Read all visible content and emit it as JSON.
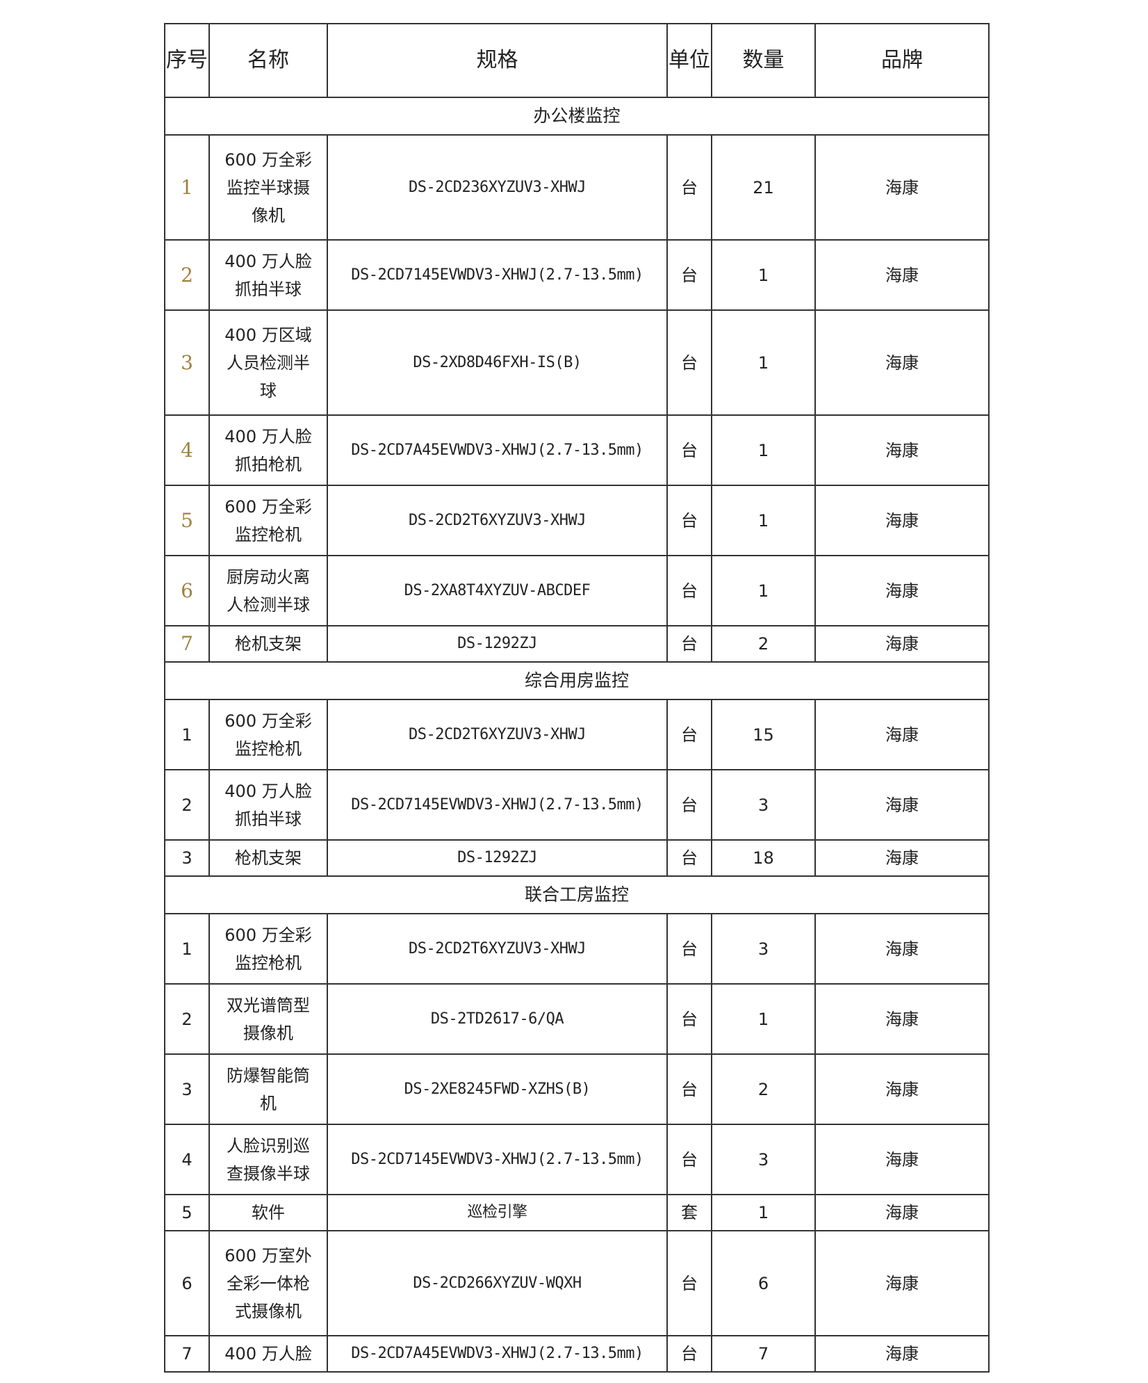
{
  "headers": {
    "seq": "序号",
    "name": "名称",
    "spec": "规格",
    "unit": "单位",
    "qty": "数量",
    "brand": "品牌"
  },
  "sections": [
    {
      "title": "办公楼监控",
      "seq_color": "#a0803e",
      "rows": [
        {
          "seq": "1",
          "name": "600 万全彩监控半球摄像机",
          "spec": "DS-2CD236XYZUV3-XHWJ",
          "unit": "台",
          "qty": "21",
          "brand": "海康"
        },
        {
          "seq": "2",
          "name": "400 万人脸抓拍半球",
          "spec": "DS-2CD7145EVWDV3-XHWJ(2.7-13.5mm)",
          "unit": "台",
          "qty": "1",
          "brand": "海康"
        },
        {
          "seq": "3",
          "name": "400 万区域人员检测半球",
          "spec": "DS-2XD8D46FXH-IS(B)",
          "unit": "台",
          "qty": "1",
          "brand": "海康"
        },
        {
          "seq": "4",
          "name": "400 万人脸抓拍枪机",
          "spec": "DS-2CD7A45EVWDV3-XHWJ(2.7-13.5mm)",
          "unit": "台",
          "qty": "1",
          "brand": "海康"
        },
        {
          "seq": "5",
          "name": "600 万全彩监控枪机",
          "spec": "DS-2CD2T6XYZUV3-XHWJ",
          "unit": "台",
          "qty": "1",
          "brand": "海康"
        },
        {
          "seq": "6",
          "name": "厨房动火离人检测半球",
          "spec": "DS-2XA8T4XYZUV-ABCDEF",
          "unit": "台",
          "qty": "1",
          "brand": "海康"
        },
        {
          "seq": "7",
          "name": "枪机支架",
          "spec": "DS-1292ZJ",
          "unit": "台",
          "qty": "2",
          "brand": "海康"
        }
      ]
    },
    {
      "title": "综合用房监控",
      "rows": [
        {
          "seq": "1",
          "name": "600 万全彩监控枪机",
          "spec": "DS-2CD2T6XYZUV3-XHWJ",
          "unit": "台",
          "qty": "15",
          "brand": "海康"
        },
        {
          "seq": "2",
          "name": "400 万人脸抓拍半球",
          "spec": "DS-2CD7145EVWDV3-XHWJ(2.7-13.5mm)",
          "unit": "台",
          "qty": "3",
          "brand": "海康"
        },
        {
          "seq": "3",
          "name": "枪机支架",
          "spec": "DS-1292ZJ",
          "unit": "台",
          "qty": "18",
          "brand": "海康"
        }
      ]
    },
    {
      "title": "联合工房监控",
      "rows": [
        {
          "seq": "1",
          "name": "600 万全彩监控枪机",
          "spec": "DS-2CD2T6XYZUV3-XHWJ",
          "unit": "台",
          "qty": "3",
          "brand": "海康"
        },
        {
          "seq": "2",
          "name": "双光谱筒型摄像机",
          "spec": "DS-2TD2617-6/QA",
          "unit": "台",
          "qty": "1",
          "brand": "海康"
        },
        {
          "seq": "3",
          "name": "防爆智能筒机",
          "spec": "DS-2XE8245FWD-XZHS(B)",
          "unit": "台",
          "qty": "2",
          "brand": "海康"
        },
        {
          "seq": "4",
          "name": "人脸识别巡查摄像半球",
          "spec": "DS-2CD7145EVWDV3-XHWJ(2.7-13.5mm)",
          "unit": "台",
          "qty": "3",
          "brand": "海康"
        },
        {
          "seq": "5",
          "name": "软件",
          "spec": "巡检引擎",
          "unit": "套",
          "qty": "1",
          "brand": "海康"
        },
        {
          "seq": "6",
          "name": "600 万室外全彩一体枪式摄像机",
          "spec": "DS-2CD266XYZUV-WQXH",
          "unit": "台",
          "qty": "6",
          "brand": "海康"
        },
        {
          "seq": "7",
          "name": "400 万人脸",
          "spec": "DS-2CD7A45EVWDV3-XHWJ(2.7-13.5mm)",
          "unit": "台",
          "qty": "7",
          "brand": "海康"
        }
      ]
    }
  ]
}
